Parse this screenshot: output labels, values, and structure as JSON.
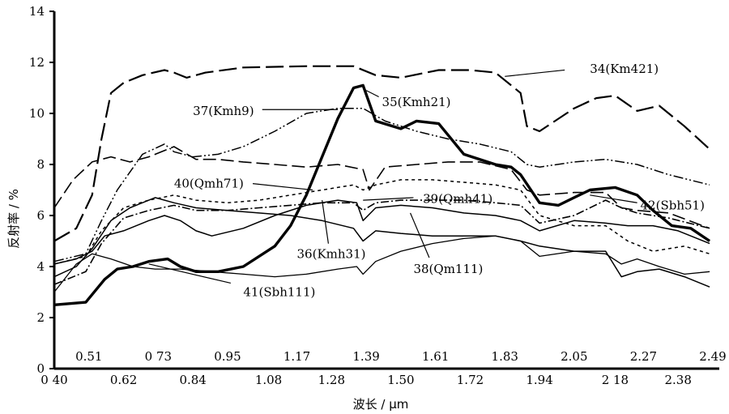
{
  "chart_data": {
    "type": "line",
    "xlabel": "波长 / μm",
    "ylabel": "反射率 / %",
    "xlim": [
      0.4,
      2.49
    ],
    "ylim": [
      0,
      14
    ],
    "y_ticks": [
      "0",
      "2",
      "4",
      "6",
      "8",
      "10",
      "12",
      "14"
    ],
    "x_ticks_bottom": [
      {
        "v": 0.4,
        "t": "0 40"
      },
      {
        "v": 0.62,
        "t": "0.62"
      },
      {
        "v": 0.84,
        "t": "0.84"
      },
      {
        "v": 1.08,
        "t": "1.08"
      },
      {
        "v": 1.28,
        "t": "1.28"
      },
      {
        "v": 1.5,
        "t": "1.50"
      },
      {
        "v": 1.72,
        "t": "1.72"
      },
      {
        "v": 1.94,
        "t": "1.94"
      },
      {
        "v": 2.18,
        "t": "2 18"
      },
      {
        "v": 2.38,
        "t": "2.38"
      }
    ],
    "x_ticks_top": [
      {
        "v": 0.51,
        "t": "0.51"
      },
      {
        "v": 0.73,
        "t": "0 73"
      },
      {
        "v": 0.95,
        "t": "0.95"
      },
      {
        "v": 1.17,
        "t": "1.17"
      },
      {
        "v": 1.39,
        "t": "1.39"
      },
      {
        "v": 1.61,
        "t": "1.61"
      },
      {
        "v": 1.83,
        "t": "1.83"
      },
      {
        "v": 2.05,
        "t": "2.05"
      },
      {
        "v": 2.27,
        "t": "2.27"
      },
      {
        "v": 2.49,
        "t": "2.49"
      }
    ],
    "series": [
      {
        "name": "34(Km421)",
        "color": "#000000",
        "width": 2.2,
        "dash": "22 7",
        "label_pos": [
          2.1,
          11.75
        ],
        "leader": [
          [
            2.02,
            11.7
          ],
          [
            1.83,
            11.45
          ]
        ],
        "x": [
          0.4,
          0.47,
          0.52,
          0.55,
          0.58,
          0.62,
          0.68,
          0.75,
          0.78,
          0.82,
          0.88,
          1.0,
          1.2,
          1.35,
          1.42,
          1.5,
          1.62,
          1.72,
          1.8,
          1.88,
          1.9,
          1.94,
          2.05,
          2.12,
          2.18,
          2.25,
          2.32,
          2.4,
          2.48
        ],
        "y": [
          5.0,
          5.5,
          6.8,
          9.0,
          10.8,
          11.2,
          11.5,
          11.7,
          11.6,
          11.4,
          11.6,
          11.8,
          11.85,
          11.85,
          11.5,
          11.4,
          11.7,
          11.7,
          11.6,
          10.8,
          9.5,
          9.3,
          10.2,
          10.6,
          10.7,
          10.1,
          10.3,
          9.5,
          8.6
        ]
      },
      {
        "name": "35(Kmh21)",
        "color": "#000000",
        "width": 3.4,
        "dash": "",
        "label_pos": [
          1.44,
          10.45
        ],
        "leader": [
          [
            1.43,
            10.65
          ],
          [
            1.39,
            10.9
          ]
        ],
        "x": [
          0.4,
          0.5,
          0.56,
          0.6,
          0.65,
          0.7,
          0.76,
          0.8,
          0.85,
          0.92,
          1.0,
          1.1,
          1.15,
          1.2,
          1.25,
          1.3,
          1.35,
          1.38,
          1.42,
          1.5,
          1.55,
          1.62,
          1.7,
          1.8,
          1.85,
          1.88,
          1.94,
          2.0,
          2.05,
          2.1,
          2.18,
          2.25,
          2.3,
          2.36,
          2.42,
          2.48
        ],
        "y": [
          2.5,
          2.6,
          3.5,
          3.9,
          4.0,
          4.2,
          4.3,
          4.0,
          3.8,
          3.8,
          4.0,
          4.8,
          5.6,
          6.8,
          8.3,
          9.8,
          11.0,
          11.1,
          9.7,
          9.4,
          9.7,
          9.6,
          8.4,
          8.0,
          7.9,
          7.6,
          6.5,
          6.4,
          6.7,
          7.0,
          7.1,
          6.8,
          6.2,
          5.6,
          5.5,
          5.0
        ]
      },
      {
        "name": "37(Kmh9)",
        "color": "#000000",
        "width": 1.5,
        "dash": "12 3 2 3 2 3",
        "label_pos": [
          0.84,
          10.1
        ],
        "leader": [
          [
            1.06,
            10.15
          ],
          [
            1.3,
            10.15
          ]
        ],
        "x": [
          0.4,
          0.5,
          0.55,
          0.6,
          0.68,
          0.75,
          0.78,
          0.84,
          0.92,
          1.0,
          1.1,
          1.2,
          1.3,
          1.38,
          1.45,
          1.55,
          1.65,
          1.75,
          1.85,
          1.9,
          1.94,
          2.05,
          2.15,
          2.25,
          2.35,
          2.48
        ],
        "y": [
          4.2,
          4.5,
          5.8,
          7.0,
          8.4,
          8.8,
          8.5,
          8.3,
          8.4,
          8.7,
          9.3,
          10.0,
          10.2,
          10.2,
          9.7,
          9.3,
          9.0,
          8.8,
          8.5,
          8.0,
          7.9,
          8.1,
          8.2,
          8.0,
          7.6,
          7.2
        ]
      },
      {
        "name": "40(Qmh71)",
        "color": "#000000",
        "width": 1.6,
        "dash": "16 6",
        "label_pos": [
          0.78,
          7.25
        ],
        "leader": [
          [
            1.03,
            7.25
          ],
          [
            1.22,
            7.0
          ]
        ],
        "x": [
          0.4,
          0.46,
          0.52,
          0.58,
          0.64,
          0.7,
          0.78,
          0.85,
          0.92,
          1.0,
          1.1,
          1.2,
          1.3,
          1.38,
          1.4,
          1.45,
          1.55,
          1.65,
          1.75,
          1.85,
          1.9,
          1.94,
          2.05,
          2.15,
          2.2,
          2.25,
          2.35,
          2.48
        ],
        "y": [
          6.3,
          7.4,
          8.1,
          8.3,
          8.1,
          8.3,
          8.7,
          8.2,
          8.2,
          8.1,
          8.0,
          7.9,
          8.0,
          7.8,
          7.0,
          7.9,
          8.0,
          8.1,
          8.1,
          7.8,
          7.0,
          6.8,
          6.9,
          6.9,
          6.3,
          6.2,
          6.1,
          5.5
        ]
      },
      {
        "name": "39(Qmh41)",
        "color": "#000000",
        "width": 1.5,
        "dash": "4 4",
        "label_pos": [
          1.57,
          6.65
        ],
        "leader": [
          [
            1.54,
            6.7
          ],
          [
            1.38,
            6.6
          ]
        ],
        "x": [
          0.4,
          0.5,
          0.55,
          0.62,
          0.7,
          0.78,
          0.85,
          0.95,
          1.05,
          1.15,
          1.25,
          1.35,
          1.38,
          1.42,
          1.5,
          1.6,
          1.7,
          1.8,
          1.88,
          1.94,
          2.05,
          2.15,
          2.22,
          2.3,
          2.4,
          2.48
        ],
        "y": [
          4.1,
          4.4,
          5.4,
          6.3,
          6.6,
          6.8,
          6.6,
          6.5,
          6.6,
          6.8,
          7.0,
          7.2,
          7.0,
          7.2,
          7.4,
          7.4,
          7.3,
          7.2,
          7.0,
          6.0,
          5.6,
          5.6,
          5.0,
          4.6,
          4.8,
          4.5
        ]
      },
      {
        "name": "42(Sbh51)",
        "color": "#000000",
        "width": 1.6,
        "dash": "10 3 2 3",
        "label_pos": [
          2.26,
          6.4
        ],
        "leader": [
          [
            2.25,
            6.5
          ],
          [
            2.1,
            6.8
          ]
        ],
        "x": [
          0.4,
          0.5,
          0.55,
          0.62,
          0.7,
          0.78,
          0.85,
          0.95,
          1.05,
          1.15,
          1.25,
          1.35,
          1.38,
          1.42,
          1.5,
          1.6,
          1.7,
          1.8,
          1.88,
          1.94,
          2.05,
          2.15,
          2.2,
          2.25,
          2.35,
          2.48
        ],
        "y": [
          3.3,
          3.8,
          4.9,
          5.9,
          6.2,
          6.4,
          6.2,
          6.2,
          6.3,
          6.4,
          6.5,
          6.5,
          6.2,
          6.5,
          6.6,
          6.6,
          6.6,
          6.5,
          6.4,
          5.7,
          6.0,
          6.6,
          6.3,
          6.1,
          5.9,
          5.5
        ]
      },
      {
        "name": "36(Kmh31)",
        "color": "#000000",
        "width": 1.5,
        "dash": "",
        "label_pos": [
          1.17,
          4.5
        ],
        "leader": [
          [
            1.27,
            4.9
          ],
          [
            1.25,
            6.6
          ]
        ],
        "x": [
          0.4,
          0.47,
          0.52,
          0.56,
          0.62,
          0.7,
          0.75,
          0.8,
          0.85,
          0.9,
          1.0,
          1.1,
          1.2,
          1.3,
          1.36,
          1.38,
          1.42,
          1.5,
          1.6,
          1.7,
          1.8,
          1.88,
          1.94,
          2.05,
          2.15,
          2.22,
          2.3,
          2.38,
          2.48
        ],
        "y": [
          4.1,
          4.3,
          4.6,
          5.2,
          5.4,
          5.8,
          6.0,
          5.8,
          5.4,
          5.2,
          5.5,
          6.0,
          6.4,
          6.6,
          6.5,
          5.8,
          6.3,
          6.4,
          6.3,
          6.1,
          6.0,
          5.8,
          5.4,
          5.8,
          5.7,
          5.6,
          5.6,
          5.4,
          4.9
        ]
      },
      {
        "name": "38(Qm111)",
        "color": "#000000",
        "width": 1.5,
        "dash": "",
        "label_pos": [
          1.54,
          3.9
        ],
        "leader": [
          [
            1.59,
            4.35
          ],
          [
            1.53,
            6.1
          ]
        ],
        "x": [
          0.4,
          0.47,
          0.52,
          0.58,
          0.64,
          0.72,
          0.78,
          0.85,
          0.95,
          1.05,
          1.15,
          1.25,
          1.35,
          1.38,
          1.42,
          1.5,
          1.6,
          1.7,
          1.8,
          1.88,
          1.94,
          2.05,
          2.15,
          2.2,
          2.25,
          2.32,
          2.4,
          2.48
        ],
        "y": [
          3.6,
          4.0,
          4.7,
          5.8,
          6.3,
          6.7,
          6.5,
          6.3,
          6.2,
          6.1,
          6.0,
          5.8,
          5.5,
          5.0,
          5.4,
          5.3,
          5.2,
          5.2,
          5.2,
          5.0,
          4.8,
          4.6,
          4.6,
          3.6,
          3.8,
          3.9,
          3.6,
          3.2
        ]
      },
      {
        "name": "41(Sbh111)",
        "color": "#000000",
        "width": 1.3,
        "dash": "",
        "label_pos": [
          1.0,
          3.0
        ],
        "leader": [
          [
            0.96,
            3.35
          ],
          [
            0.7,
            4.1
          ]
        ],
        "x": [
          0.4,
          0.47,
          0.52,
          0.58,
          0.65,
          0.72,
          0.8,
          0.9,
          1.0,
          1.1,
          1.2,
          1.3,
          1.36,
          1.38,
          1.42,
          1.5,
          1.6,
          1.7,
          1.8,
          1.88,
          1.94,
          2.05,
          2.15,
          2.2,
          2.25,
          2.32,
          2.4,
          2.48
        ],
        "y": [
          3.0,
          4.1,
          4.5,
          4.3,
          4.0,
          3.9,
          3.9,
          3.8,
          3.7,
          3.6,
          3.7,
          3.9,
          4.0,
          3.7,
          4.2,
          4.6,
          4.9,
          5.1,
          5.2,
          5.0,
          4.4,
          4.6,
          4.5,
          4.1,
          4.3,
          4.0,
          3.7,
          3.8
        ]
      }
    ]
  }
}
